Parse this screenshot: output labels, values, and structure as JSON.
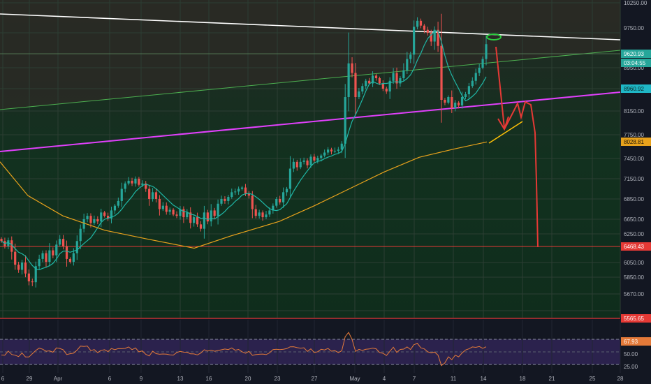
{
  "chart_data": [
    {
      "type": "candlestick",
      "instrument": "BTC",
      "x_ticks": [
        "6",
        "29",
        "Apr",
        "6",
        "9",
        "13",
        "16",
        "20",
        "23",
        "27",
        "May",
        "4",
        "7",
        "11",
        "14",
        "18",
        "21",
        "25",
        "28"
      ],
      "y_ticks": [
        "10250.00",
        "9750.00",
        "9350.00",
        "8950.00",
        "8550.00",
        "8150.00",
        "7750.00",
        "7450.00",
        "7150.00",
        "6850.00",
        "6650.00",
        "6250.00",
        "6050.00",
        "5850.00",
        "5670.00",
        "5565.00"
      ],
      "price_labels": {
        "last_price": "9620.93",
        "countdown": "03:04:55",
        "ma_fast": "8960.92",
        "ma_slow": "8028.81",
        "support": "6468.43",
        "pane_bottom": "5565.65"
      },
      "ohlc_close": [
        6550,
        6480,
        6560,
        6400,
        6220,
        6150,
        6250,
        6100,
        6000,
        5990,
        6200,
        6300,
        6380,
        6260,
        6420,
        6350,
        6500,
        6580,
        6480,
        6300,
        6260,
        6380,
        6550,
        6720,
        6850,
        6900,
        6800,
        6850,
        6820,
        6950,
        6900,
        6860,
        6980,
        7050,
        7120,
        7300,
        7380,
        7420,
        7380,
        7450,
        7360,
        7380,
        7300,
        7150,
        7250,
        7150,
        7000,
        7050,
        6960,
        6990,
        6920,
        6900,
        7000,
        6880,
        6950,
        6800,
        6880,
        6780,
        6720,
        6950,
        6820,
        6980,
        6900,
        7080,
        7150,
        7120,
        7180,
        7250,
        7260,
        7300,
        7320,
        7230,
        7200,
        7000,
        6900,
        6950,
        6880,
        6920,
        6980,
        7050,
        7150,
        7100,
        7250,
        7300,
        7600,
        7700,
        7620,
        7700,
        7720,
        7650,
        7780,
        7720,
        7760,
        7800,
        7850,
        7900,
        7870,
        7880,
        7900,
        8000,
        8800,
        9400,
        9250,
        8800,
        8900,
        9000,
        9100,
        9050,
        9200,
        9150,
        9050,
        8950,
        8900,
        9100,
        9250,
        9050,
        9150,
        9300,
        9450,
        9500,
        9850,
        9950,
        9870,
        9800,
        9750,
        9650,
        9800,
        9600,
        8750,
        8700,
        8800,
        8600,
        8700,
        8650,
        8800,
        8850,
        9000,
        9100,
        9250,
        9350,
        9450,
        9620
      ],
      "ma_fast_series": "8960.92",
      "ma_slow_series": "8028.81",
      "rsi": {
        "levels": [
          70,
          50,
          30
        ],
        "tick_labels": [
          "67.93",
          "50.00",
          "25.00"
        ],
        "last": "67.93"
      },
      "drawings": [
        "descending resistance trendline (white)",
        "ascending trendline (green)",
        "ascending support trendline (magenta)",
        "horizontal support at 6468.43 (red)",
        "projected path arrows (red)"
      ],
      "colors": {
        "background": "#131722",
        "up": "#26a69a",
        "down": "#ef5350",
        "ma_fast": "#1fb7a6",
        "ma_slow": "#e8a21c",
        "resistance": "#ffffff",
        "green_line": "#4caf50",
        "magenta_line": "#e040fb",
        "support_line": "#e53935",
        "rsi_line": "#e47a39",
        "rsi_band": "#3e2a67"
      }
    }
  ]
}
